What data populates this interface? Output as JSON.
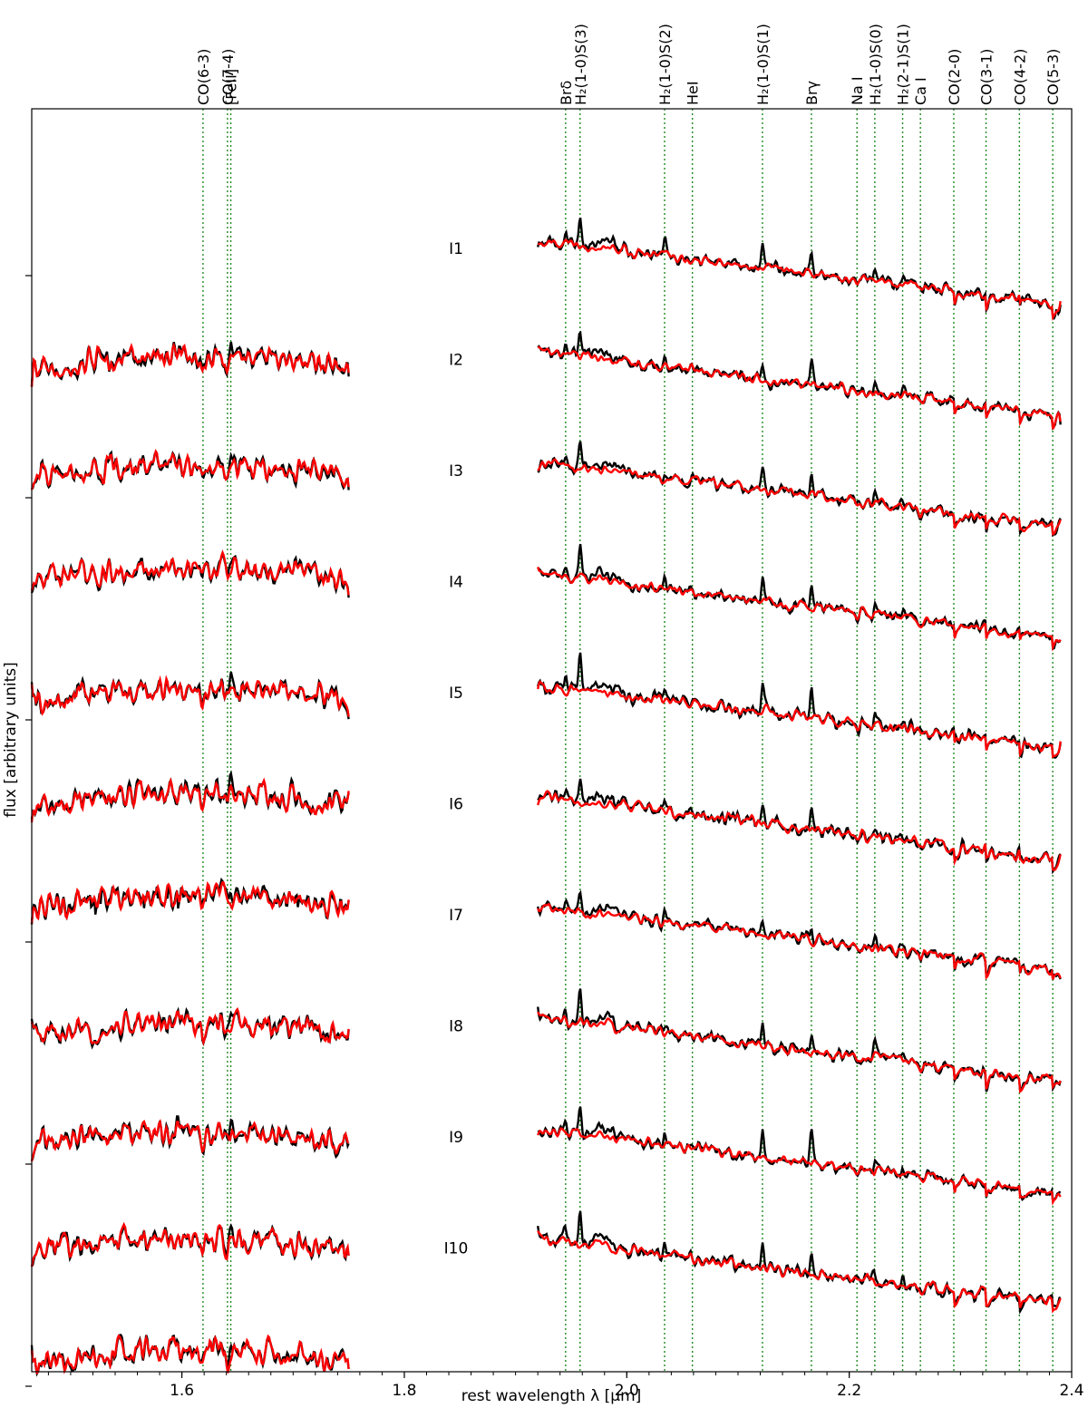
{
  "chart_data": {
    "type": "line",
    "xlabel": "rest wavelength λ [μm]",
    "ylabel": "flux [arbitrary units]",
    "xlim": [
      1.465,
      2.4
    ],
    "x_ticks": [
      {
        "value": 1.6,
        "label": "1.6"
      },
      {
        "value": 1.8,
        "label": "1.8"
      },
      {
        "value": 2.0,
        "label": "2.0"
      },
      {
        "value": 2.2,
        "label": "2.2"
      },
      {
        "value": 2.4,
        "label": "2.4"
      }
    ],
    "y_ticks": [
      1,
      2,
      3,
      4,
      5,
      6
    ],
    "grid": false,
    "h_band_range": [
      1.465,
      1.75
    ],
    "k_band_range": [
      1.92,
      2.39
    ],
    "series_colors": {
      "observed": "#000000",
      "model": "#ff0000"
    },
    "line_marker_color": "#228b22",
    "spectral_lines": [
      {
        "name": "CO(6-3)",
        "x": 1.619
      },
      {
        "name": "CO(7-4)",
        "x": 1.641
      },
      {
        "name": "[FeII]",
        "x": 1.644
      },
      {
        "name": "Brδ",
        "x": 1.945
      },
      {
        "name": "H₂(1-0)S(3)",
        "x": 1.958
      },
      {
        "name": "H₂(1-0)S(2)",
        "x": 2.034
      },
      {
        "name": "HeI",
        "x": 2.059
      },
      {
        "name": "H₂(1-0)S(1)",
        "x": 2.122
      },
      {
        "name": "Brγ",
        "x": 2.166
      },
      {
        "name": "Na I",
        "x": 2.207
      },
      {
        "name": "H₂(1-0)S(0)",
        "x": 2.223
      },
      {
        "name": "H₂(2-1)S(1)",
        "x": 2.248
      },
      {
        "name": "Ca I",
        "x": 2.264
      },
      {
        "name": "CO(2-0)",
        "x": 2.294
      },
      {
        "name": "CO(3-1)",
        "x": 2.323
      },
      {
        "name": "CO(4-2)",
        "x": 2.353
      },
      {
        "name": "CO(5-3)",
        "x": 2.383
      }
    ],
    "panels": [
      {
        "label": "I1",
        "h_level": 0.58,
        "k_level": 0.0,
        "seed": 11,
        "h2": 1.0,
        "brg": 0.8,
        "brd": 0.3,
        "noise": 1.0
      },
      {
        "label": "I2",
        "h_level": 1.07,
        "k_level": 0.5,
        "seed": 23,
        "h2": 0.8,
        "brg": 0.8,
        "brd": 0.3,
        "noise": 1.0
      },
      {
        "label": "I3",
        "h_level": 1.53,
        "k_level": 1.0,
        "seed": 37,
        "h2": 0.9,
        "brg": 0.6,
        "brd": 0.3,
        "noise": 1.0
      },
      {
        "label": "I4",
        "h_level": 2.07,
        "k_level": 1.5,
        "seed": 41,
        "h2": 0.9,
        "brg": 0.8,
        "brd": 0.4,
        "noise": 1.0
      },
      {
        "label": "I5",
        "h_level": 2.55,
        "k_level": 2.0,
        "seed": 53,
        "h2": 1.1,
        "brg": 1.3,
        "brd": 0.6,
        "noise": 1.1
      },
      {
        "label": "I6",
        "h_level": 3.01,
        "k_level": 2.5,
        "seed": 67,
        "h2": 0.8,
        "brg": 0.7,
        "brd": 0.3,
        "noise": 1.1
      },
      {
        "label": "I7",
        "h_level": 3.58,
        "k_level": 3.0,
        "seed": 71,
        "h2": 0.7,
        "brg": 0.7,
        "brd": 0.3,
        "noise": 1.0
      },
      {
        "label": "I8",
        "h_level": 4.07,
        "k_level": 3.5,
        "seed": 83,
        "h2": 1.0,
        "brg": 0.7,
        "brd": 0.3,
        "noise": 1.0
      },
      {
        "label": "I9",
        "h_level": 4.55,
        "k_level": 4.0,
        "seed": 97,
        "h2": 1.0,
        "brg": 1.3,
        "brd": 0.5,
        "noise": 1.0
      },
      {
        "label": "I10",
        "h_level": 5.05,
        "k_level": 4.5,
        "seed": 101,
        "h2": 1.1,
        "brg": 0.8,
        "brd": 0.5,
        "noise": 1.1
      }
    ]
  }
}
